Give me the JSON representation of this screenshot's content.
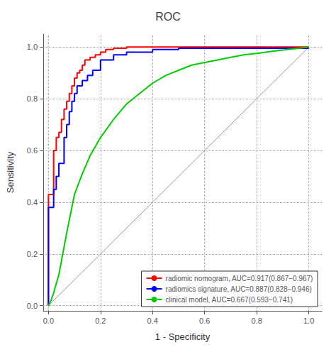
{
  "chart_data": {
    "type": "line",
    "title": "ROC",
    "xlabel": "1 - Specificity",
    "ylabel": "Sensitivity",
    "xlim": [
      -0.02,
      1.05
    ],
    "ylim": [
      -0.02,
      1.05
    ],
    "xticks": [
      {
        "value": 0,
        "label": "0.0"
      },
      0.2,
      0.4,
      0.6,
      0.8,
      {
        "value": 1,
        "label": "1.0"
      }
    ],
    "yticks": [
      {
        "value": 0,
        "label": "0.0"
      },
      0.2,
      0.4,
      0.6,
      0.8,
      {
        "value": 1,
        "label": "1.0"
      }
    ],
    "grid": true,
    "legend": "lower right",
    "series": [
      {
        "color": "#999999",
        "x": [
          0,
          1
        ],
        "values": [
          0,
          1
        ]
      },
      {
        "name": "radiomic nomogram, AUC=0.917(0.867−0.967)",
        "color": "#FF0000",
        "x": [
          0.0,
          0.0,
          0.02,
          0.02,
          0.03,
          0.03,
          0.04,
          0.04,
          0.05,
          0.05,
          0.06,
          0.06,
          0.07,
          0.07,
          0.08,
          0.08,
          0.09,
          0.09,
          0.1,
          0.1,
          0.11,
          0.11,
          0.12,
          0.12,
          0.13,
          0.13,
          0.14,
          0.14,
          0.16,
          0.16,
          0.18,
          0.18,
          0.2,
          0.2,
          0.22,
          0.22,
          0.25,
          0.25,
          0.3,
          0.3,
          0.4,
          0.4,
          1.0
        ],
        "values": [
          0.0,
          0.43,
          0.43,
          0.6,
          0.6,
          0.65,
          0.65,
          0.67,
          0.67,
          0.72,
          0.72,
          0.76,
          0.76,
          0.79,
          0.79,
          0.82,
          0.82,
          0.85,
          0.85,
          0.88,
          0.88,
          0.9,
          0.9,
          0.91,
          0.91,
          0.93,
          0.93,
          0.95,
          0.95,
          0.96,
          0.96,
          0.97,
          0.97,
          0.98,
          0.98,
          0.99,
          0.99,
          0.995,
          0.995,
          1.0,
          1.0,
          1.0,
          1.0
        ]
      },
      {
        "name": "radiomics signature, AUC=0.887(0.828−0.946)",
        "color": "#0000FF",
        "x": [
          0.0,
          0.0,
          0.02,
          0.02,
          0.03,
          0.03,
          0.04,
          0.04,
          0.06,
          0.06,
          0.07,
          0.07,
          0.08,
          0.08,
          0.09,
          0.09,
          0.1,
          0.1,
          0.11,
          0.11,
          0.13,
          0.13,
          0.15,
          0.15,
          0.17,
          0.17,
          0.2,
          0.2,
          0.25,
          0.25,
          0.3,
          0.3,
          0.4,
          0.4,
          0.5,
          0.5,
          1.0
        ],
        "values": [
          0.0,
          0.38,
          0.38,
          0.45,
          0.45,
          0.5,
          0.5,
          0.55,
          0.55,
          0.65,
          0.65,
          0.7,
          0.7,
          0.75,
          0.75,
          0.79,
          0.79,
          0.82,
          0.82,
          0.85,
          0.85,
          0.87,
          0.87,
          0.89,
          0.89,
          0.91,
          0.91,
          0.95,
          0.95,
          0.97,
          0.97,
          0.98,
          0.98,
          0.99,
          0.99,
          0.995,
          0.995
        ]
      },
      {
        "name": "clinical model, AUC=0.667(0.593−0.741)",
        "color": "#00CC00",
        "x": [
          0.0,
          0.005,
          0.01,
          0.02,
          0.04,
          0.07,
          0.1,
          0.13,
          0.16,
          0.2,
          0.25,
          0.3,
          0.35,
          0.4,
          0.45,
          0.5,
          0.55,
          0.6,
          0.65,
          0.7,
          0.75,
          0.8,
          0.85,
          0.9,
          0.95,
          1.0
        ],
        "values": [
          0.0,
          0.01,
          0.02,
          0.05,
          0.12,
          0.28,
          0.43,
          0.51,
          0.58,
          0.65,
          0.72,
          0.78,
          0.82,
          0.86,
          0.89,
          0.91,
          0.93,
          0.94,
          0.95,
          0.96,
          0.97,
          0.975,
          0.982,
          0.988,
          0.994,
          1.0
        ]
      }
    ]
  }
}
